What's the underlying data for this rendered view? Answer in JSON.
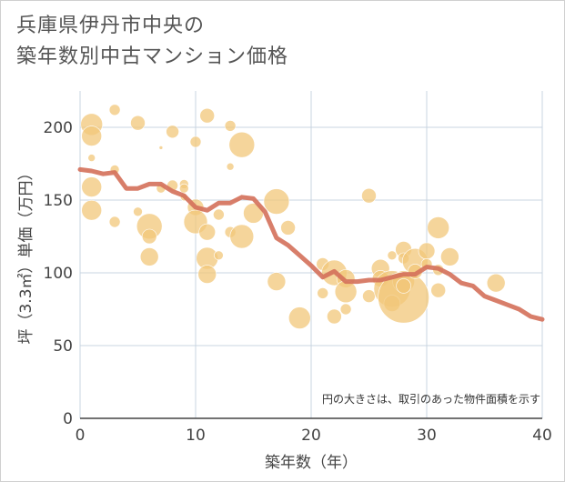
{
  "title_lines": [
    "兵庫県伊丹市中央の",
    "築年数別中古マンション価格"
  ],
  "chart_data": {
    "type": "scatter",
    "title": "兵庫県伊丹市中央の築年数別中古マンション価格",
    "xlabel": "築年数（年）",
    "ylabel": "坪（3.3㎡）単価（万円）",
    "xlim": [
      0,
      40
    ],
    "ylim": [
      0,
      225
    ],
    "xticks": [
      0,
      10,
      20,
      30,
      40
    ],
    "yticks": [
      0,
      50,
      100,
      150,
      200
    ],
    "grid": true,
    "annotation": "円の大きさは、取引のあった物件面積を示す",
    "colors": {
      "bubble": "#f2c77a",
      "line": "#d4705a",
      "grid": "#c8d4e0"
    },
    "bubbles": [
      {
        "x": 1,
        "y": 202,
        "s": 12
      },
      {
        "x": 1,
        "y": 194,
        "s": 11
      },
      {
        "x": 1,
        "y": 179,
        "s": 4
      },
      {
        "x": 1,
        "y": 159,
        "s": 11
      },
      {
        "x": 1,
        "y": 143,
        "s": 11
      },
      {
        "x": 3,
        "y": 212,
        "s": 6
      },
      {
        "x": 3,
        "y": 171,
        "s": 5
      },
      {
        "x": 3,
        "y": 135,
        "s": 6
      },
      {
        "x": 5,
        "y": 203,
        "s": 8
      },
      {
        "x": 5,
        "y": 142,
        "s": 5
      },
      {
        "x": 6,
        "y": 132,
        "s": 14
      },
      {
        "x": 6,
        "y": 125,
        "s": 8
      },
      {
        "x": 6,
        "y": 111,
        "s": 10
      },
      {
        "x": 7,
        "y": 186,
        "s": 2
      },
      {
        "x": 7,
        "y": 158,
        "s": 5
      },
      {
        "x": 8,
        "y": 197,
        "s": 7
      },
      {
        "x": 8,
        "y": 160,
        "s": 6
      },
      {
        "x": 9,
        "y": 161,
        "s": 5
      },
      {
        "x": 9,
        "y": 158,
        "s": 5
      },
      {
        "x": 9,
        "y": 152,
        "s": 4
      },
      {
        "x": 10,
        "y": 190,
        "s": 6
      },
      {
        "x": 10,
        "y": 145,
        "s": 9
      },
      {
        "x": 10,
        "y": 135,
        "s": 13
      },
      {
        "x": 11,
        "y": 208,
        "s": 8
      },
      {
        "x": 11,
        "y": 128,
        "s": 9
      },
      {
        "x": 11,
        "y": 110,
        "s": 12
      },
      {
        "x": 11,
        "y": 99,
        "s": 10
      },
      {
        "x": 12,
        "y": 140,
        "s": 6
      },
      {
        "x": 12,
        "y": 112,
        "s": 5
      },
      {
        "x": 13,
        "y": 201,
        "s": 6
      },
      {
        "x": 13,
        "y": 173,
        "s": 4
      },
      {
        "x": 13,
        "y": 128,
        "s": 6
      },
      {
        "x": 14,
        "y": 188,
        "s": 14
      },
      {
        "x": 14,
        "y": 125,
        "s": 13
      },
      {
        "x": 15,
        "y": 141,
        "s": 11
      },
      {
        "x": 17,
        "y": 149,
        "s": 14
      },
      {
        "x": 17,
        "y": 94,
        "s": 10
      },
      {
        "x": 18,
        "y": 131,
        "s": 8
      },
      {
        "x": 19,
        "y": 69,
        "s": 12
      },
      {
        "x": 21,
        "y": 106,
        "s": 7
      },
      {
        "x": 21,
        "y": 86,
        "s": 6
      },
      {
        "x": 22,
        "y": 100,
        "s": 14
      },
      {
        "x": 22,
        "y": 70,
        "s": 8
      },
      {
        "x": 23,
        "y": 96,
        "s": 10
      },
      {
        "x": 23,
        "y": 87,
        "s": 12
      },
      {
        "x": 23,
        "y": 75,
        "s": 6
      },
      {
        "x": 25,
        "y": 153,
        "s": 8
      },
      {
        "x": 25,
        "y": 84,
        "s": 7
      },
      {
        "x": 26,
        "y": 103,
        "s": 10
      },
      {
        "x": 26,
        "y": 96,
        "s": 9
      },
      {
        "x": 27,
        "y": 112,
        "s": 5
      },
      {
        "x": 27,
        "y": 89,
        "s": 20
      },
      {
        "x": 27,
        "y": 79,
        "s": 9
      },
      {
        "x": 28,
        "y": 116,
        "s": 9
      },
      {
        "x": 28,
        "y": 110,
        "s": 6
      },
      {
        "x": 28,
        "y": 94,
        "s": 12
      },
      {
        "x": 28,
        "y": 83,
        "s": 28
      },
      {
        "x": 28,
        "y": 91,
        "s": 8
      },
      {
        "x": 29,
        "y": 108,
        "s": 14
      },
      {
        "x": 29,
        "y": 101,
        "s": 8
      },
      {
        "x": 30,
        "y": 115,
        "s": 9
      },
      {
        "x": 30,
        "y": 106,
        "s": 6
      },
      {
        "x": 31,
        "y": 131,
        "s": 12
      },
      {
        "x": 31,
        "y": 102,
        "s": 6
      },
      {
        "x": 31,
        "y": 88,
        "s": 8
      },
      {
        "x": 32,
        "y": 111,
        "s": 10
      },
      {
        "x": 36,
        "y": 93,
        "s": 10
      }
    ],
    "trend": {
      "x": [
        0,
        1,
        2,
        3,
        4,
        5,
        6,
        7,
        8,
        9,
        10,
        11,
        12,
        13,
        14,
        15,
        16,
        17,
        18,
        19,
        20,
        21,
        22,
        23,
        24,
        25,
        26,
        27,
        28,
        29,
        30,
        31,
        32,
        33,
        34,
        35,
        36,
        37,
        38,
        39,
        40
      ],
      "y": [
        171,
        170,
        168,
        169,
        158,
        158,
        161,
        161,
        156,
        153,
        145,
        143,
        148,
        148,
        152,
        151,
        142,
        124,
        119,
        112,
        105,
        97,
        101,
        94,
        94,
        95,
        95,
        97,
        99,
        99,
        104,
        103,
        99,
        93,
        91,
        84,
        81,
        78,
        75,
        70,
        68
      ]
    }
  }
}
